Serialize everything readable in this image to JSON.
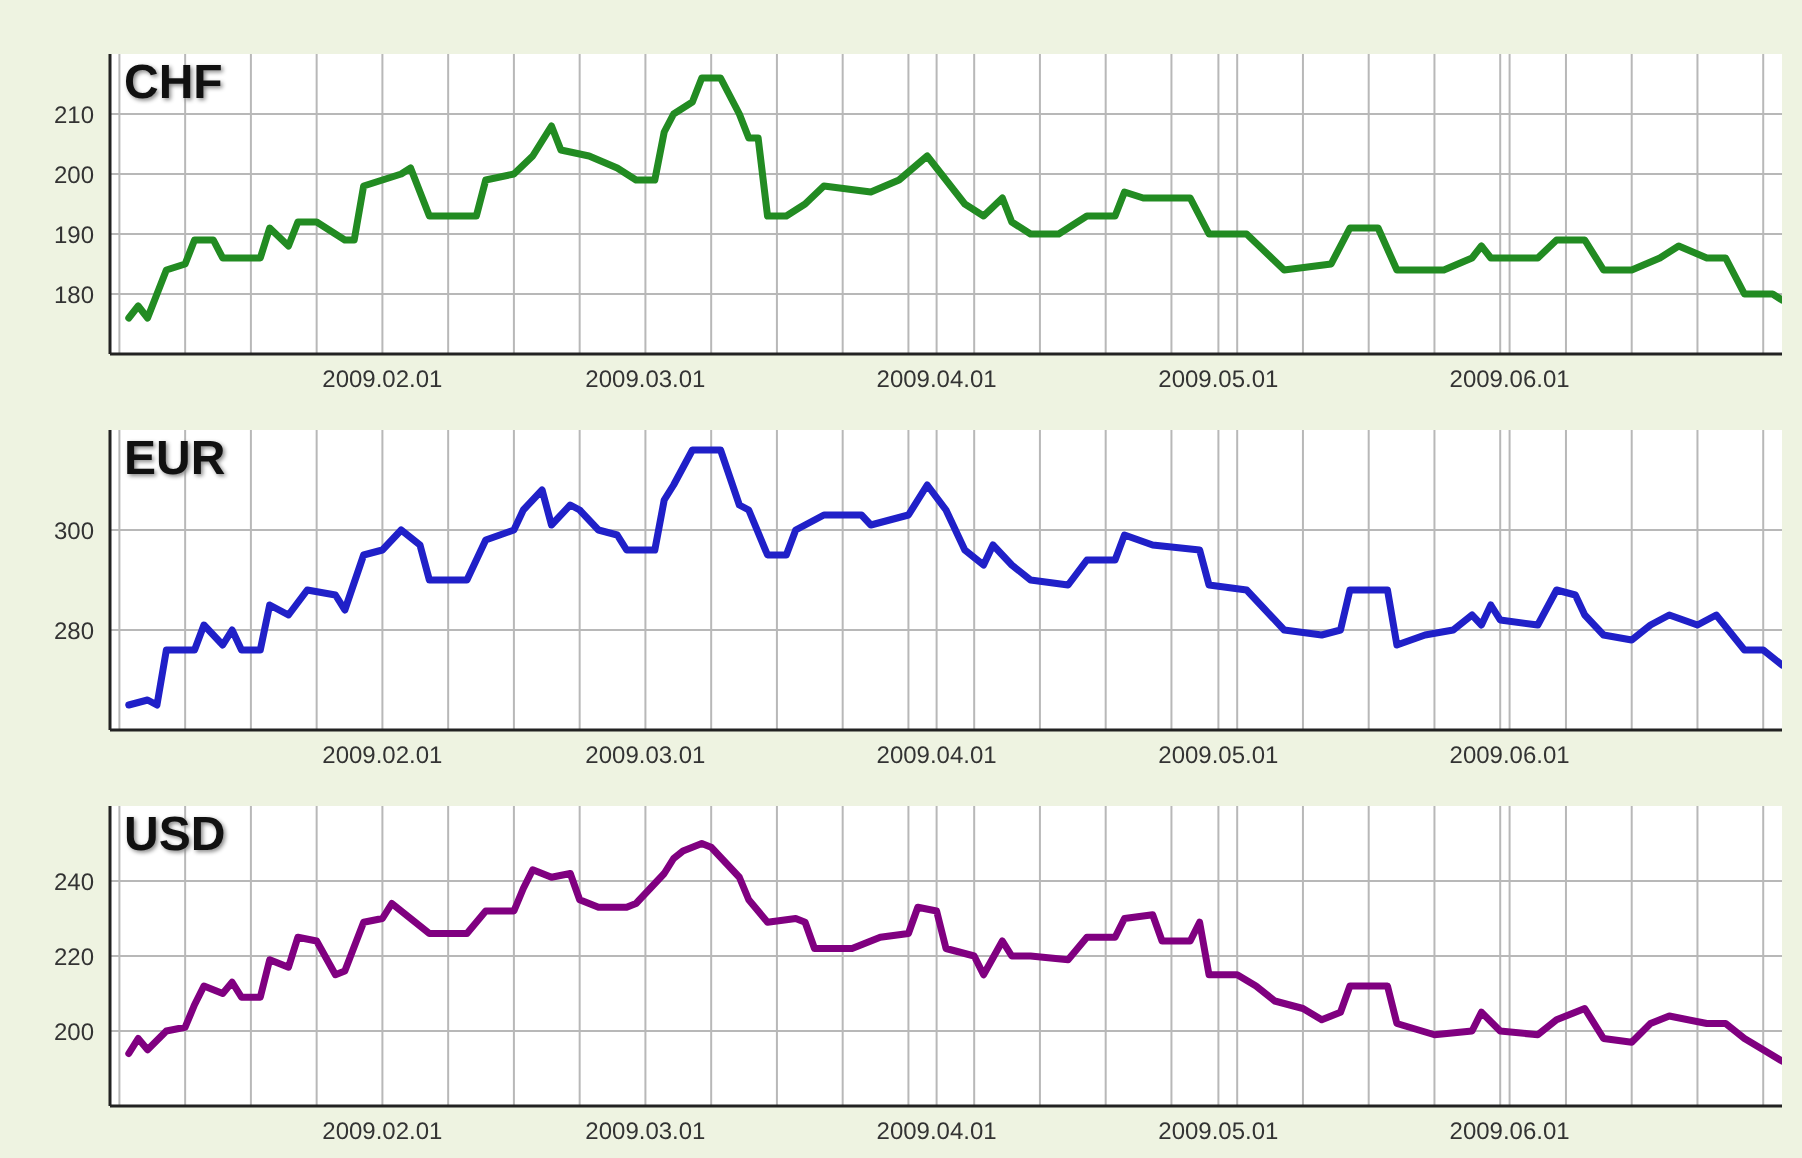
{
  "chart_data": [
    {
      "type": "line",
      "title": "CHF",
      "color": "#228b22",
      "grid": true,
      "xlim": [
        "2009-01-03",
        "2009-06-30"
      ],
      "ylim": [
        170,
        220
      ],
      "yticks": [
        180,
        190,
        200,
        210
      ],
      "xticks": [
        {
          "value": "2009-01-04",
          "label": null
        },
        {
          "value": "2009-01-11",
          "label": null
        },
        {
          "value": "2009-01-18",
          "label": null
        },
        {
          "value": "2009-01-25",
          "label": null
        },
        {
          "value": "2009-02-01",
          "label": "2009.02.01"
        },
        {
          "value": "2009-02-08",
          "label": null
        },
        {
          "value": "2009-02-15",
          "label": null
        },
        {
          "value": "2009-02-22",
          "label": null
        },
        {
          "value": "2009-03-01",
          "label": "2009.03.01"
        },
        {
          "value": "2009-03-08",
          "label": null
        },
        {
          "value": "2009-03-15",
          "label": null
        },
        {
          "value": "2009-03-22",
          "label": null
        },
        {
          "value": "2009-03-29",
          "label": null
        },
        {
          "value": "2009-04-01",
          "label": "2009.04.01"
        },
        {
          "value": "2009-04-05",
          "label": null
        },
        {
          "value": "2009-04-12",
          "label": null
        },
        {
          "value": "2009-04-19",
          "label": null
        },
        {
          "value": "2009-04-26",
          "label": null
        },
        {
          "value": "2009-05-01",
          "label": "2009.05.01"
        },
        {
          "value": "2009-05-03",
          "label": null
        },
        {
          "value": "2009-05-10",
          "label": null
        },
        {
          "value": "2009-05-17",
          "label": null
        },
        {
          "value": "2009-05-24",
          "label": null
        },
        {
          "value": "2009-05-31",
          "label": null
        },
        {
          "value": "2009-06-01",
          "label": "2009.06.01"
        },
        {
          "value": "2009-06-07",
          "label": null
        },
        {
          "value": "2009-06-14",
          "label": null
        },
        {
          "value": "2009-06-21",
          "label": null
        },
        {
          "value": "2009-06-28",
          "label": null
        }
      ],
      "x": [
        "2009-01-05",
        "2009-01-06",
        "2009-01-07",
        "2009-01-09",
        "2009-01-11",
        "2009-01-12",
        "2009-01-14",
        "2009-01-15",
        "2009-01-19",
        "2009-01-20",
        "2009-01-22",
        "2009-01-23",
        "2009-01-25",
        "2009-01-28",
        "2009-01-29",
        "2009-01-30",
        "2009-02-03",
        "2009-02-04",
        "2009-02-06",
        "2009-02-11",
        "2009-02-12",
        "2009-02-15",
        "2009-02-17",
        "2009-02-19",
        "2009-02-20",
        "2009-02-23",
        "2009-02-26",
        "2009-02-28",
        "2009-03-02",
        "2009-03-03",
        "2009-03-04",
        "2009-03-06",
        "2009-03-07",
        "2009-03-09",
        "2009-03-11",
        "2009-03-12",
        "2009-03-13",
        "2009-03-14",
        "2009-03-16",
        "2009-03-18",
        "2009-03-20",
        "2009-03-25",
        "2009-03-28",
        "2009-03-31",
        "2009-04-02",
        "2009-04-04",
        "2009-04-06",
        "2009-04-08",
        "2009-04-09",
        "2009-04-11",
        "2009-04-14",
        "2009-04-17",
        "2009-04-20",
        "2009-04-21",
        "2009-04-23",
        "2009-04-28",
        "2009-04-30",
        "2009-05-04",
        "2009-05-06",
        "2009-05-08",
        "2009-05-13",
        "2009-05-15",
        "2009-05-18",
        "2009-05-20",
        "2009-05-25",
        "2009-05-28",
        "2009-05-29",
        "2009-05-30",
        "2009-06-04",
        "2009-06-06",
        "2009-06-09",
        "2009-06-11",
        "2009-06-14",
        "2009-06-17",
        "2009-06-19",
        "2009-06-22",
        "2009-06-24",
        "2009-06-26",
        "2009-06-29",
        "2009-06-30"
      ],
      "values": [
        176,
        178,
        176,
        184,
        185,
        189,
        189,
        186,
        186,
        191,
        188,
        192,
        192,
        189,
        189,
        198,
        200,
        201,
        193,
        193,
        199,
        200,
        203,
        208,
        204,
        203,
        201,
        199,
        199,
        207,
        210,
        212,
        216,
        216,
        210,
        206,
        206,
        193,
        193,
        195,
        198,
        197,
        199,
        203,
        199,
        195,
        193,
        196,
        192,
        190,
        190,
        193,
        193,
        197,
        196,
        196,
        190,
        190,
        187,
        184,
        185,
        191,
        191,
        184,
        184,
        186,
        188,
        186,
        186,
        189,
        189,
        184,
        184,
        186,
        188,
        186,
        186,
        180,
        180,
        179
      ]
    },
    {
      "type": "line",
      "title": "EUR",
      "color": "#2020c8",
      "grid": true,
      "xlim": [
        "2009-01-03",
        "2009-06-30"
      ],
      "ylim": [
        260,
        320
      ],
      "yticks": [
        280,
        300
      ],
      "xticks": [
        {
          "value": "2009-01-04",
          "label": null
        },
        {
          "value": "2009-01-11",
          "label": null
        },
        {
          "value": "2009-01-18",
          "label": null
        },
        {
          "value": "2009-01-25",
          "label": null
        },
        {
          "value": "2009-02-01",
          "label": "2009.02.01"
        },
        {
          "value": "2009-02-08",
          "label": null
        },
        {
          "value": "2009-02-15",
          "label": null
        },
        {
          "value": "2009-02-22",
          "label": null
        },
        {
          "value": "2009-03-01",
          "label": "2009.03.01"
        },
        {
          "value": "2009-03-08",
          "label": null
        },
        {
          "value": "2009-03-15",
          "label": null
        },
        {
          "value": "2009-03-22",
          "label": null
        },
        {
          "value": "2009-03-29",
          "label": null
        },
        {
          "value": "2009-04-01",
          "label": "2009.04.01"
        },
        {
          "value": "2009-04-05",
          "label": null
        },
        {
          "value": "2009-04-12",
          "label": null
        },
        {
          "value": "2009-04-19",
          "label": null
        },
        {
          "value": "2009-04-26",
          "label": null
        },
        {
          "value": "2009-05-01",
          "label": "2009.05.01"
        },
        {
          "value": "2009-05-03",
          "label": null
        },
        {
          "value": "2009-05-10",
          "label": null
        },
        {
          "value": "2009-05-17",
          "label": null
        },
        {
          "value": "2009-05-24",
          "label": null
        },
        {
          "value": "2009-05-31",
          "label": null
        },
        {
          "value": "2009-06-01",
          "label": "2009.06.01"
        },
        {
          "value": "2009-06-07",
          "label": null
        },
        {
          "value": "2009-06-14",
          "label": null
        },
        {
          "value": "2009-06-21",
          "label": null
        },
        {
          "value": "2009-06-28",
          "label": null
        }
      ],
      "x": [
        "2009-01-05",
        "2009-01-07",
        "2009-01-08",
        "2009-01-09",
        "2009-01-12",
        "2009-01-13",
        "2009-01-15",
        "2009-01-16",
        "2009-01-17",
        "2009-01-19",
        "2009-01-20",
        "2009-01-22",
        "2009-01-24",
        "2009-01-27",
        "2009-01-28",
        "2009-01-30",
        "2009-02-01",
        "2009-02-03",
        "2009-02-05",
        "2009-02-06",
        "2009-02-10",
        "2009-02-12",
        "2009-02-15",
        "2009-02-16",
        "2009-02-18",
        "2009-02-19",
        "2009-02-21",
        "2009-02-22",
        "2009-02-24",
        "2009-02-26",
        "2009-02-27",
        "2009-03-02",
        "2009-03-03",
        "2009-03-04",
        "2009-03-06",
        "2009-03-09",
        "2009-03-11",
        "2009-03-12",
        "2009-03-14",
        "2009-03-16",
        "2009-03-17",
        "2009-03-18",
        "2009-03-20",
        "2009-03-24",
        "2009-03-25",
        "2009-03-29",
        "2009-03-31",
        "2009-04-02",
        "2009-04-04",
        "2009-04-06",
        "2009-04-07",
        "2009-04-09",
        "2009-04-11",
        "2009-04-15",
        "2009-04-17",
        "2009-04-20",
        "2009-04-21",
        "2009-04-24",
        "2009-04-29",
        "2009-04-30",
        "2009-05-04",
        "2009-05-06",
        "2009-05-08",
        "2009-05-12",
        "2009-05-14",
        "2009-05-15",
        "2009-05-19",
        "2009-05-20",
        "2009-05-23",
        "2009-05-26",
        "2009-05-28",
        "2009-05-29",
        "2009-05-30",
        "2009-05-31",
        "2009-06-04",
        "2009-06-06",
        "2009-06-08",
        "2009-06-09",
        "2009-06-11",
        "2009-06-14",
        "2009-06-16",
        "2009-06-18",
        "2009-06-21",
        "2009-06-23",
        "2009-06-26",
        "2009-06-28",
        "2009-06-30"
      ],
      "values": [
        265,
        266,
        265,
        276,
        276,
        281,
        277,
        280,
        276,
        276,
        285,
        283,
        288,
        287,
        284,
        295,
        296,
        300,
        297,
        290,
        290,
        298,
        300,
        304,
        308,
        301,
        305,
        304,
        300,
        299,
        296,
        296,
        306,
        309,
        316,
        316,
        305,
        304,
        295,
        295,
        300,
        301,
        303,
        303,
        301,
        303,
        309,
        304,
        296,
        293,
        297,
        293,
        290,
        289,
        294,
        294,
        299,
        297,
        296,
        289,
        288,
        284,
        280,
        279,
        280,
        288,
        288,
        277,
        279,
        280,
        283,
        281,
        285,
        282,
        281,
        288,
        287,
        283,
        279,
        278,
        281,
        283,
        281,
        283,
        276,
        276,
        273
      ]
    },
    {
      "type": "line",
      "title": "USD",
      "color": "#800080",
      "grid": true,
      "xlim": [
        "2009-01-03",
        "2009-06-30"
      ],
      "ylim": [
        180,
        260
      ],
      "yticks": [
        200,
        220,
        240
      ],
      "xticks": [
        {
          "value": "2009-01-04",
          "label": null
        },
        {
          "value": "2009-01-11",
          "label": null
        },
        {
          "value": "2009-01-18",
          "label": null
        },
        {
          "value": "2009-01-25",
          "label": null
        },
        {
          "value": "2009-02-01",
          "label": "2009.02.01"
        },
        {
          "value": "2009-02-08",
          "label": null
        },
        {
          "value": "2009-02-15",
          "label": null
        },
        {
          "value": "2009-02-22",
          "label": null
        },
        {
          "value": "2009-03-01",
          "label": "2009.03.01"
        },
        {
          "value": "2009-03-08",
          "label": null
        },
        {
          "value": "2009-03-15",
          "label": null
        },
        {
          "value": "2009-03-22",
          "label": null
        },
        {
          "value": "2009-03-29",
          "label": null
        },
        {
          "value": "2009-04-01",
          "label": "2009.04.01"
        },
        {
          "value": "2009-04-05",
          "label": null
        },
        {
          "value": "2009-04-12",
          "label": null
        },
        {
          "value": "2009-04-19",
          "label": null
        },
        {
          "value": "2009-04-26",
          "label": null
        },
        {
          "value": "2009-05-01",
          "label": "2009.05.01"
        },
        {
          "value": "2009-05-03",
          "label": null
        },
        {
          "value": "2009-05-10",
          "label": null
        },
        {
          "value": "2009-05-17",
          "label": null
        },
        {
          "value": "2009-05-24",
          "label": null
        },
        {
          "value": "2009-05-31",
          "label": null
        },
        {
          "value": "2009-06-01",
          "label": "2009.06.01"
        },
        {
          "value": "2009-06-07",
          "label": null
        },
        {
          "value": "2009-06-14",
          "label": null
        },
        {
          "value": "2009-06-21",
          "label": null
        },
        {
          "value": "2009-06-28",
          "label": null
        }
      ],
      "x": [
        "2009-01-05",
        "2009-01-06",
        "2009-01-07",
        "2009-01-09",
        "2009-01-11",
        "2009-01-12",
        "2009-01-13",
        "2009-01-15",
        "2009-01-16",
        "2009-01-17",
        "2009-01-19",
        "2009-01-20",
        "2009-01-22",
        "2009-01-23",
        "2009-01-25",
        "2009-01-27",
        "2009-01-28",
        "2009-01-30",
        "2009-02-01",
        "2009-02-02",
        "2009-02-04",
        "2009-02-06",
        "2009-02-10",
        "2009-02-12",
        "2009-02-15",
        "2009-02-16",
        "2009-02-17",
        "2009-02-19",
        "2009-02-21",
        "2009-02-22",
        "2009-02-24",
        "2009-02-27",
        "2009-02-28",
        "2009-03-03",
        "2009-03-04",
        "2009-03-05",
        "2009-03-07",
        "2009-03-08",
        "2009-03-11",
        "2009-03-12",
        "2009-03-14",
        "2009-03-17",
        "2009-03-18",
        "2009-03-19",
        "2009-03-23",
        "2009-03-26",
        "2009-03-29",
        "2009-03-30",
        "2009-04-01",
        "2009-04-02",
        "2009-04-05",
        "2009-04-06",
        "2009-04-08",
        "2009-04-09",
        "2009-04-11",
        "2009-04-15",
        "2009-04-17",
        "2009-04-20",
        "2009-04-21",
        "2009-04-24",
        "2009-04-25",
        "2009-04-28",
        "2009-04-29",
        "2009-04-30",
        "2009-05-03",
        "2009-05-05",
        "2009-05-07",
        "2009-05-10",
        "2009-05-12",
        "2009-05-14",
        "2009-05-15",
        "2009-05-19",
        "2009-05-20",
        "2009-05-24",
        "2009-05-28",
        "2009-05-29",
        "2009-05-31",
        "2009-06-04",
        "2009-06-06",
        "2009-06-08",
        "2009-06-09",
        "2009-06-11",
        "2009-06-14",
        "2009-06-16",
        "2009-06-18",
        "2009-06-22",
        "2009-06-24",
        "2009-06-26",
        "2009-06-28",
        "2009-06-30"
      ],
      "values": [
        194,
        198,
        195,
        200,
        201,
        207,
        212,
        210,
        213,
        209,
        209,
        219,
        217,
        225,
        224,
        215,
        216,
        229,
        230,
        234,
        230,
        226,
        226,
        232,
        232,
        238,
        243,
        241,
        242,
        235,
        233,
        233,
        234,
        242,
        246,
        248,
        250,
        249,
        241,
        235,
        229,
        230,
        229,
        222,
        222,
        225,
        226,
        233,
        232,
        222,
        220,
        215,
        224,
        220,
        220,
        219,
        225,
        225,
        230,
        231,
        224,
        224,
        229,
        215,
        215,
        212,
        208,
        206,
        203,
        205,
        212,
        212,
        202,
        199,
        200,
        205,
        200,
        199,
        203,
        205,
        206,
        198,
        197,
        202,
        204,
        202,
        202,
        198,
        195,
        192
      ]
    }
  ]
}
